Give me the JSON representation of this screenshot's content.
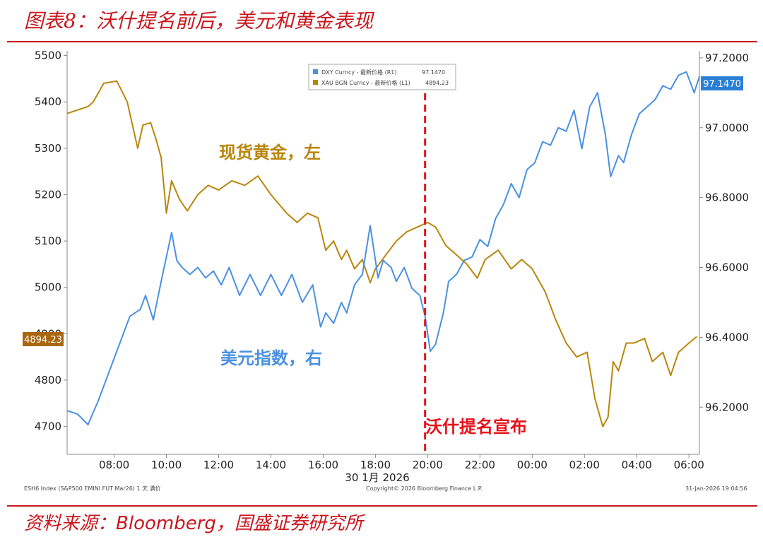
{
  "header": {
    "title": "图表8：沃什提名前后，美元和黄金表现"
  },
  "footer": {
    "source_prefix": "资料来源：",
    "source_brand": "Bloomberg",
    "source_suffix": "，国盛证券研究所"
  },
  "chart_data": {
    "type": "line",
    "xlabel": "30 1月 2026",
    "x_ticks": [
      "08:00",
      "10:00",
      "12:00",
      "14:00",
      "16:00",
      "18:00",
      "20:00",
      "22:00",
      "00:00",
      "02:00",
      "04:00",
      "06:00"
    ],
    "x_range_hours": [
      6.2,
      30.4
    ],
    "y_left": {
      "ticks": [
        4700,
        4800,
        4900,
        5000,
        5100,
        5200,
        5300,
        5400,
        5500
      ],
      "range": [
        4640,
        5510
      ]
    },
    "y_right": {
      "ticks": [
        "96.2000",
        "96.4000",
        "96.6000",
        "96.8000",
        "97.0000",
        "97.2000"
      ],
      "range": [
        96.065,
        97.22
      ]
    },
    "left_last_value_label": "4894.23",
    "right_last_value_label": "97.1470",
    "legend": {
      "position": "top-center",
      "entries": [
        {
          "label": "DXY Curncy - 最新价格 (R1)",
          "value": "97.1470",
          "color": "#4a90e2"
        },
        {
          "label": "XAU BGN Curncy - 最新价格 (L1)",
          "value": "4894.23",
          "color": "#b8860b"
        }
      ]
    },
    "annotations": [
      {
        "text": "现货黄金，左",
        "color": "#b8860b"
      },
      {
        "text": "美元指数，右",
        "color": "#4a90e2"
      },
      {
        "text": "沃什提名宣布",
        "color": "#e8101a",
        "x": 19.9
      }
    ],
    "series": [
      {
        "name": "XAU BGN Curncy",
        "axis": "left",
        "color": "#b8860b",
        "x": [
          6.2,
          7.0,
          7.2,
          7.6,
          8.1,
          8.5,
          8.9,
          9.1,
          9.4,
          9.6,
          9.8,
          10.0,
          10.2,
          10.5,
          10.8,
          11.2,
          11.6,
          12.0,
          12.5,
          13.0,
          13.5,
          14.0,
          14.3,
          14.6,
          15.0,
          15.4,
          15.8,
          16.1,
          16.4,
          16.7,
          16.9,
          17.2,
          17.5,
          17.8,
          18.0,
          18.4,
          18.8,
          19.2,
          19.6,
          20.0,
          20.3,
          20.7,
          21.1,
          21.5,
          21.9,
          22.2,
          22.7,
          23.2,
          23.6,
          24.0,
          24.5,
          24.9,
          25.3,
          25.7,
          26.1,
          26.4,
          26.7,
          26.9,
          27.1,
          27.3,
          27.6,
          27.9,
          28.3,
          28.6,
          29.0,
          29.3,
          29.6,
          30.0,
          30.3
        ],
        "y": [
          5375,
          5390,
          5400,
          5440,
          5445,
          5400,
          5300,
          5350,
          5355,
          5320,
          5280,
          5160,
          5230,
          5190,
          5165,
          5200,
          5220,
          5210,
          5230,
          5220,
          5240,
          5200,
          5180,
          5160,
          5140,
          5160,
          5150,
          5080,
          5100,
          5060,
          5080,
          5040,
          5060,
          5010,
          5040,
          5070,
          5100,
          5120,
          5130,
          5140,
          5130,
          5090,
          5070,
          5050,
          5020,
          5060,
          5080,
          5040,
          5060,
          5040,
          4990,
          4930,
          4880,
          4850,
          4860,
          4760,
          4700,
          4720,
          4840,
          4820,
          4880,
          4880,
          4890,
          4840,
          4860,
          4810,
          4860,
          4880,
          4894
        ]
      },
      {
        "name": "DXY Curncy",
        "axis": "right",
        "color": "#4a90e2",
        "x": [
          6.2,
          6.6,
          7.0,
          7.4,
          7.8,
          8.2,
          8.6,
          9.0,
          9.2,
          9.5,
          9.8,
          10.0,
          10.2,
          10.4,
          10.6,
          10.9,
          11.2,
          11.5,
          11.8,
          12.1,
          12.4,
          12.8,
          13.2,
          13.6,
          14.0,
          14.4,
          14.8,
          15.2,
          15.6,
          15.9,
          16.1,
          16.4,
          16.7,
          16.9,
          17.2,
          17.5,
          17.8,
          18.1,
          18.3,
          18.6,
          18.8,
          19.1,
          19.4,
          19.7,
          19.9,
          20.1,
          20.3,
          20.6,
          20.8,
          21.1,
          21.4,
          21.7,
          22.0,
          22.3,
          22.6,
          22.9,
          23.2,
          23.5,
          23.8,
          24.1,
          24.4,
          24.7,
          25.0,
          25.3,
          25.6,
          25.9,
          26.2,
          26.5,
          26.8,
          27.0,
          27.3,
          27.5,
          27.8,
          28.1,
          28.4,
          28.7,
          29.0,
          29.3,
          29.6,
          29.9,
          30.2,
          30.4
        ],
        "y": [
          96.19,
          96.18,
          96.15,
          96.22,
          96.3,
          96.38,
          96.46,
          96.48,
          96.52,
          96.45,
          96.56,
          96.63,
          96.7,
          96.62,
          96.6,
          96.58,
          96.6,
          96.57,
          96.59,
          96.55,
          96.6,
          96.52,
          96.58,
          96.52,
          96.58,
          96.52,
          96.58,
          96.5,
          96.55,
          96.43,
          96.47,
          96.44,
          96.5,
          96.47,
          96.55,
          96.58,
          96.72,
          96.57,
          96.62,
          96.6,
          96.56,
          96.6,
          96.54,
          96.52,
          96.46,
          96.36,
          96.38,
          96.47,
          96.56,
          96.58,
          96.62,
          96.63,
          96.68,
          96.66,
          96.74,
          96.78,
          96.84,
          96.8,
          96.88,
          96.9,
          96.96,
          96.95,
          97.0,
          96.99,
          97.05,
          96.94,
          97.06,
          97.1,
          96.98,
          96.86,
          96.92,
          96.9,
          96.98,
          97.04,
          97.06,
          97.08,
          97.12,
          97.11,
          97.15,
          97.16,
          97.1,
          97.147
        ]
      }
    ]
  },
  "watermarks": {
    "left": "ESH6 Index (S&P500 EMINI FUT  Mar26) 1 天 满价",
    "center": "Copyright© 2026 Bloomberg Finance L.P.",
    "right": "31-Jan-2026 19:04:56"
  }
}
